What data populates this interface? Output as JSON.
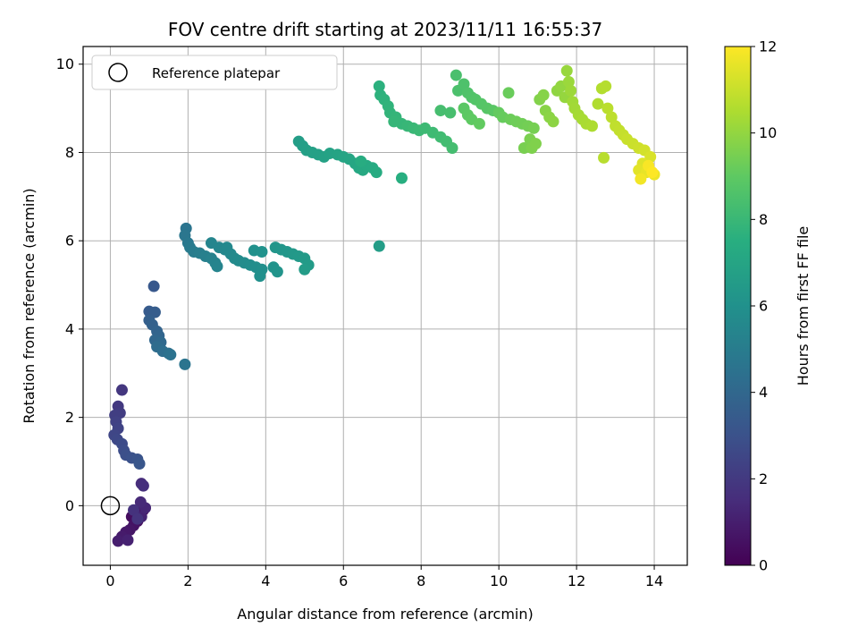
{
  "chart_data": {
    "type": "scatter",
    "title": "FOV centre drift starting at 2023/11/11 16:55:37",
    "xlabel": "Angular distance from reference (arcmin)",
    "ylabel": "Rotation from reference (arcmin)",
    "xlim": [
      -0.7,
      14.85
    ],
    "ylim": [
      -1.35,
      10.4
    ],
    "xticks": [
      0,
      2,
      4,
      6,
      8,
      10,
      12,
      14
    ],
    "yticks": [
      0,
      2,
      4,
      6,
      8,
      10
    ],
    "grid": true,
    "legend": {
      "placement": "top-left",
      "entries": [
        "Reference platepar"
      ]
    },
    "colorbar": {
      "label": "Hours from first FF file",
      "range": [
        0,
        12
      ],
      "ticks": [
        0,
        2,
        4,
        6,
        8,
        10,
        12
      ],
      "colormap": "viridis"
    },
    "reference_point": {
      "x": 0,
      "y": 0,
      "label": "Reference platepar"
    },
    "points": [
      {
        "x": 0.85,
        "y": -0.1,
        "t": 0.1
      },
      {
        "x": 0.75,
        "y": -0.15,
        "t": 0.2
      },
      {
        "x": 0.65,
        "y": -0.2,
        "t": 0.3
      },
      {
        "x": 0.55,
        "y": -0.25,
        "t": 0.4
      },
      {
        "x": 0.7,
        "y": -0.35,
        "t": 0.5
      },
      {
        "x": 0.6,
        "y": -0.45,
        "t": 0.6
      },
      {
        "x": 0.5,
        "y": -0.55,
        "t": 0.7
      },
      {
        "x": 0.4,
        "y": -0.6,
        "t": 0.8
      },
      {
        "x": 0.3,
        "y": -0.7,
        "t": 0.9
      },
      {
        "x": 0.2,
        "y": -0.8,
        "t": 1.0
      },
      {
        "x": 0.45,
        "y": -0.78,
        "t": 1.1
      },
      {
        "x": 0.8,
        "y": -0.25,
        "t": 1.2
      },
      {
        "x": 0.9,
        "y": -0.05,
        "t": 1.3
      },
      {
        "x": 0.78,
        "y": 0.08,
        "t": 1.4
      },
      {
        "x": 0.8,
        "y": 0.5,
        "t": 1.5
      },
      {
        "x": 0.85,
        "y": 0.45,
        "t": 1.6
      },
      {
        "x": 0.6,
        "y": -0.1,
        "t": 1.7
      },
      {
        "x": 0.7,
        "y": -0.3,
        "t": 1.8
      },
      {
        "x": 0.3,
        "y": 2.62,
        "t": 1.9
      },
      {
        "x": 0.2,
        "y": 2.25,
        "t": 2.0
      },
      {
        "x": 0.25,
        "y": 2.1,
        "t": 2.1
      },
      {
        "x": 0.12,
        "y": 2.05,
        "t": 2.2
      },
      {
        "x": 0.15,
        "y": 1.9,
        "t": 2.3
      },
      {
        "x": 0.2,
        "y": 1.75,
        "t": 2.4
      },
      {
        "x": 0.1,
        "y": 1.6,
        "t": 2.5
      },
      {
        "x": 0.18,
        "y": 1.5,
        "t": 2.6
      },
      {
        "x": 0.3,
        "y": 1.4,
        "t": 2.7
      },
      {
        "x": 0.35,
        "y": 1.25,
        "t": 2.8
      },
      {
        "x": 0.4,
        "y": 1.15,
        "t": 2.9
      },
      {
        "x": 0.55,
        "y": 1.08,
        "t": 3.0
      },
      {
        "x": 0.7,
        "y": 1.05,
        "t": 3.1
      },
      {
        "x": 0.75,
        "y": 0.95,
        "t": 3.2
      },
      {
        "x": 1.12,
        "y": 4.97,
        "t": 3.3
      },
      {
        "x": 1.0,
        "y": 4.4,
        "t": 3.4
      },
      {
        "x": 1.15,
        "y": 4.38,
        "t": 3.5
      },
      {
        "x": 1.0,
        "y": 4.2,
        "t": 3.6
      },
      {
        "x": 1.08,
        "y": 4.1,
        "t": 3.7
      },
      {
        "x": 1.2,
        "y": 3.95,
        "t": 3.8
      },
      {
        "x": 1.25,
        "y": 3.85,
        "t": 3.9
      },
      {
        "x": 1.15,
        "y": 3.75,
        "t": 4.0
      },
      {
        "x": 1.3,
        "y": 3.7,
        "t": 4.1
      },
      {
        "x": 1.2,
        "y": 3.6,
        "t": 4.2
      },
      {
        "x": 1.35,
        "y": 3.5,
        "t": 4.3
      },
      {
        "x": 1.5,
        "y": 3.45,
        "t": 4.4
      },
      {
        "x": 1.55,
        "y": 3.42,
        "t": 4.5
      },
      {
        "x": 1.92,
        "y": 3.2,
        "t": 4.6
      },
      {
        "x": 1.95,
        "y": 6.28,
        "t": 4.6
      },
      {
        "x": 1.92,
        "y": 6.12,
        "t": 4.7
      },
      {
        "x": 2.0,
        "y": 5.95,
        "t": 4.8
      },
      {
        "x": 2.05,
        "y": 5.85,
        "t": 4.9
      },
      {
        "x": 2.15,
        "y": 5.75,
        "t": 5.0
      },
      {
        "x": 2.3,
        "y": 5.72,
        "t": 5.1
      },
      {
        "x": 2.45,
        "y": 5.65,
        "t": 5.2
      },
      {
        "x": 2.6,
        "y": 5.6,
        "t": 5.25
      },
      {
        "x": 2.7,
        "y": 5.5,
        "t": 5.3
      },
      {
        "x": 2.75,
        "y": 5.42,
        "t": 5.35
      },
      {
        "x": 2.6,
        "y": 5.95,
        "t": 5.4
      },
      {
        "x": 2.8,
        "y": 5.85,
        "t": 5.45
      },
      {
        "x": 2.95,
        "y": 5.8,
        "t": 5.5
      },
      {
        "x": 3.0,
        "y": 5.85,
        "t": 5.55
      },
      {
        "x": 3.1,
        "y": 5.7,
        "t": 5.6
      },
      {
        "x": 3.2,
        "y": 5.6,
        "t": 5.65
      },
      {
        "x": 3.3,
        "y": 5.55,
        "t": 5.7
      },
      {
        "x": 3.45,
        "y": 5.5,
        "t": 5.75
      },
      {
        "x": 3.6,
        "y": 5.45,
        "t": 5.8
      },
      {
        "x": 3.75,
        "y": 5.4,
        "t": 5.85
      },
      {
        "x": 3.9,
        "y": 5.35,
        "t": 5.9
      },
      {
        "x": 3.85,
        "y": 5.2,
        "t": 5.95
      },
      {
        "x": 3.7,
        "y": 5.78,
        "t": 6.0
      },
      {
        "x": 3.9,
        "y": 5.75,
        "t": 6.05
      },
      {
        "x": 4.2,
        "y": 5.4,
        "t": 6.1
      },
      {
        "x": 4.3,
        "y": 5.3,
        "t": 6.15
      },
      {
        "x": 4.25,
        "y": 5.85,
        "t": 6.2
      },
      {
        "x": 4.4,
        "y": 5.8,
        "t": 6.25
      },
      {
        "x": 4.55,
        "y": 5.75,
        "t": 6.3
      },
      {
        "x": 4.7,
        "y": 5.7,
        "t": 6.35
      },
      {
        "x": 4.85,
        "y": 5.65,
        "t": 6.4
      },
      {
        "x": 5.0,
        "y": 5.6,
        "t": 6.45
      },
      {
        "x": 5.1,
        "y": 5.45,
        "t": 6.5
      },
      {
        "x": 5.0,
        "y": 5.35,
        "t": 6.55
      },
      {
        "x": 6.92,
        "y": 5.88,
        "t": 6.6
      },
      {
        "x": 4.85,
        "y": 8.25,
        "t": 6.6
      },
      {
        "x": 4.95,
        "y": 8.15,
        "t": 6.65
      },
      {
        "x": 5.05,
        "y": 8.05,
        "t": 6.7
      },
      {
        "x": 5.2,
        "y": 8.0,
        "t": 6.75
      },
      {
        "x": 5.35,
        "y": 7.95,
        "t": 6.8
      },
      {
        "x": 5.5,
        "y": 7.9,
        "t": 6.85
      },
      {
        "x": 5.65,
        "y": 7.98,
        "t": 6.9
      },
      {
        "x": 5.85,
        "y": 7.95,
        "t": 6.95
      },
      {
        "x": 6.0,
        "y": 7.9,
        "t": 7.0
      },
      {
        "x": 6.15,
        "y": 7.85,
        "t": 7.05
      },
      {
        "x": 6.3,
        "y": 7.75,
        "t": 7.1
      },
      {
        "x": 6.4,
        "y": 7.65,
        "t": 7.15
      },
      {
        "x": 6.5,
        "y": 7.6,
        "t": 7.2
      },
      {
        "x": 6.6,
        "y": 7.7,
        "t": 7.25
      },
      {
        "x": 6.75,
        "y": 7.65,
        "t": 7.3
      },
      {
        "x": 6.85,
        "y": 7.55,
        "t": 7.35
      },
      {
        "x": 6.45,
        "y": 7.8,
        "t": 7.4
      },
      {
        "x": 7.5,
        "y": 7.42,
        "t": 7.5
      },
      {
        "x": 6.92,
        "y": 9.5,
        "t": 7.6
      },
      {
        "x": 6.95,
        "y": 9.3,
        "t": 7.65
      },
      {
        "x": 7.05,
        "y": 9.2,
        "t": 7.7
      },
      {
        "x": 7.15,
        "y": 9.05,
        "t": 7.75
      },
      {
        "x": 7.2,
        "y": 8.9,
        "t": 7.8
      },
      {
        "x": 7.35,
        "y": 8.8,
        "t": 7.85
      },
      {
        "x": 7.5,
        "y": 8.65,
        "t": 7.9
      },
      {
        "x": 7.65,
        "y": 8.6,
        "t": 7.95
      },
      {
        "x": 7.8,
        "y": 8.55,
        "t": 8.0
      },
      {
        "x": 7.95,
        "y": 8.5,
        "t": 8.05
      },
      {
        "x": 8.1,
        "y": 8.55,
        "t": 8.1
      },
      {
        "x": 8.3,
        "y": 8.45,
        "t": 8.15
      },
      {
        "x": 8.5,
        "y": 8.35,
        "t": 8.2
      },
      {
        "x": 8.65,
        "y": 8.25,
        "t": 8.25
      },
      {
        "x": 8.8,
        "y": 8.1,
        "t": 8.3
      },
      {
        "x": 7.3,
        "y": 8.7,
        "t": 7.9
      },
      {
        "x": 8.5,
        "y": 8.95,
        "t": 8.35
      },
      {
        "x": 8.75,
        "y": 8.9,
        "t": 8.4
      },
      {
        "x": 8.9,
        "y": 9.75,
        "t": 8.45
      },
      {
        "x": 8.95,
        "y": 9.4,
        "t": 8.5
      },
      {
        "x": 9.1,
        "y": 9.55,
        "t": 8.55
      },
      {
        "x": 9.2,
        "y": 9.35,
        "t": 8.6
      },
      {
        "x": 9.3,
        "y": 9.25,
        "t": 8.65
      },
      {
        "x": 9.4,
        "y": 9.2,
        "t": 8.7
      },
      {
        "x": 9.55,
        "y": 9.1,
        "t": 8.75
      },
      {
        "x": 9.7,
        "y": 9.0,
        "t": 8.8
      },
      {
        "x": 9.85,
        "y": 8.95,
        "t": 8.85
      },
      {
        "x": 9.1,
        "y": 9.0,
        "t": 8.9
      },
      {
        "x": 9.2,
        "y": 8.85,
        "t": 8.95
      },
      {
        "x": 9.3,
        "y": 8.75,
        "t": 9.0
      },
      {
        "x": 9.5,
        "y": 8.65,
        "t": 9.05
      },
      {
        "x": 10.0,
        "y": 8.9,
        "t": 9.1
      },
      {
        "x": 10.1,
        "y": 8.8,
        "t": 9.15
      },
      {
        "x": 10.25,
        "y": 9.35,
        "t": 9.2
      },
      {
        "x": 10.3,
        "y": 8.75,
        "t": 9.25
      },
      {
        "x": 10.45,
        "y": 8.7,
        "t": 9.3
      },
      {
        "x": 10.6,
        "y": 8.65,
        "t": 9.35
      },
      {
        "x": 10.75,
        "y": 8.6,
        "t": 9.4
      },
      {
        "x": 10.9,
        "y": 8.55,
        "t": 9.45
      },
      {
        "x": 10.65,
        "y": 8.1,
        "t": 9.5
      },
      {
        "x": 10.8,
        "y": 8.3,
        "t": 9.55
      },
      {
        "x": 10.85,
        "y": 8.1,
        "t": 9.6
      },
      {
        "x": 10.95,
        "y": 8.2,
        "t": 9.65
      },
      {
        "x": 11.05,
        "y": 9.2,
        "t": 9.7
      },
      {
        "x": 11.15,
        "y": 9.3,
        "t": 9.75
      },
      {
        "x": 11.2,
        "y": 8.95,
        "t": 9.8
      },
      {
        "x": 11.3,
        "y": 8.8,
        "t": 9.85
      },
      {
        "x": 11.4,
        "y": 8.7,
        "t": 9.9
      },
      {
        "x": 11.5,
        "y": 9.4,
        "t": 9.95
      },
      {
        "x": 11.6,
        "y": 9.5,
        "t": 10.0
      },
      {
        "x": 11.7,
        "y": 9.25,
        "t": 10.05
      },
      {
        "x": 11.75,
        "y": 9.85,
        "t": 10.1
      },
      {
        "x": 11.8,
        "y": 9.6,
        "t": 10.15
      },
      {
        "x": 11.85,
        "y": 9.4,
        "t": 10.2
      },
      {
        "x": 11.9,
        "y": 9.15,
        "t": 10.25
      },
      {
        "x": 11.95,
        "y": 9.0,
        "t": 10.3
      },
      {
        "x": 12.05,
        "y": 8.85,
        "t": 10.35
      },
      {
        "x": 12.15,
        "y": 8.75,
        "t": 10.4
      },
      {
        "x": 12.25,
        "y": 8.65,
        "t": 10.45
      },
      {
        "x": 12.4,
        "y": 8.6,
        "t": 10.5
      },
      {
        "x": 12.55,
        "y": 9.1,
        "t": 10.55
      },
      {
        "x": 12.65,
        "y": 9.45,
        "t": 10.6
      },
      {
        "x": 12.75,
        "y": 9.5,
        "t": 10.65
      },
      {
        "x": 12.7,
        "y": 7.88,
        "t": 10.7
      },
      {
        "x": 12.8,
        "y": 9.0,
        "t": 10.75
      },
      {
        "x": 12.9,
        "y": 8.8,
        "t": 10.8
      },
      {
        "x": 13.0,
        "y": 8.6,
        "t": 10.85
      },
      {
        "x": 13.1,
        "y": 8.5,
        "t": 10.9
      },
      {
        "x": 13.2,
        "y": 8.4,
        "t": 10.95
      },
      {
        "x": 13.3,
        "y": 8.3,
        "t": 11.0
      },
      {
        "x": 13.45,
        "y": 8.2,
        "t": 11.05
      },
      {
        "x": 13.6,
        "y": 8.1,
        "t": 11.1
      },
      {
        "x": 13.75,
        "y": 8.05,
        "t": 11.2
      },
      {
        "x": 13.9,
        "y": 7.9,
        "t": 11.3
      },
      {
        "x": 13.7,
        "y": 7.75,
        "t": 11.4
      },
      {
        "x": 13.6,
        "y": 7.6,
        "t": 11.5
      },
      {
        "x": 13.8,
        "y": 7.55,
        "t": 11.6
      },
      {
        "x": 14.0,
        "y": 7.5,
        "t": 11.7
      },
      {
        "x": 13.65,
        "y": 7.4,
        "t": 11.8
      },
      {
        "x": 13.85,
        "y": 7.7,
        "t": 11.9
      },
      {
        "x": 13.95,
        "y": 7.55,
        "t": 12.0
      }
    ]
  }
}
